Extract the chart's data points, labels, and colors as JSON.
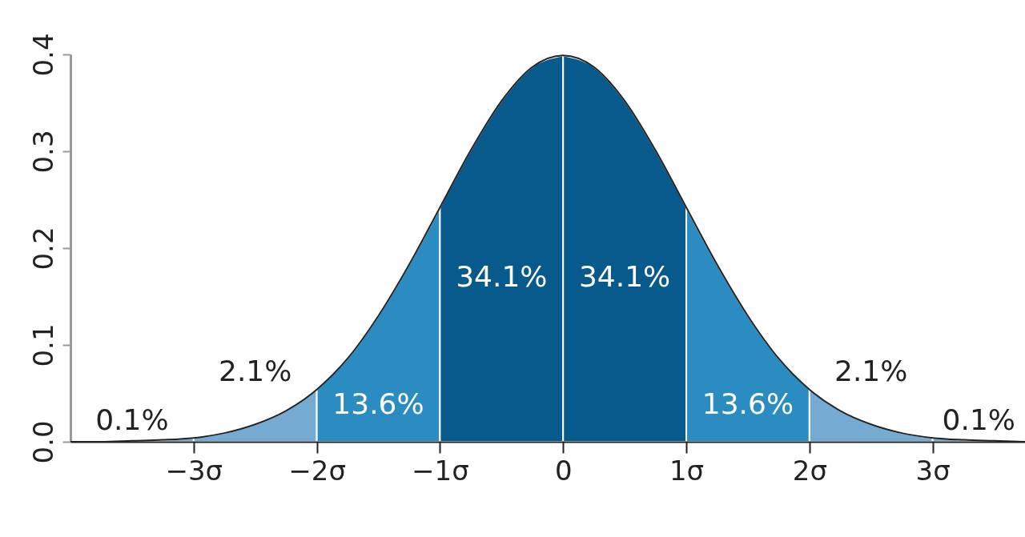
{
  "chart_data": {
    "type": "area",
    "xlim": [
      -4,
      3.75
    ],
    "ylim": [
      0,
      0.4
    ],
    "xticks": [
      {
        "value": -3,
        "label": "−3σ"
      },
      {
        "value": -2,
        "label": "−2σ"
      },
      {
        "value": -1,
        "label": "−1σ"
      },
      0,
      {
        "value": 1,
        "label": "1σ"
      },
      {
        "value": 2,
        "label": "2σ"
      },
      {
        "value": 3,
        "label": "3σ"
      }
    ],
    "yticks": [
      {
        "value": 0,
        "label": "0.0"
      },
      0.1,
      0.2,
      0.3,
      0.4
    ],
    "series": [
      {
        "color": "#75aad3",
        "x": [
          -4,
          -3.75,
          -3.5,
          -3.25,
          -3
        ],
        "values": [
          0.0,
          0.0,
          0.001,
          0.002,
          0.004
        ]
      },
      {
        "color": "#75aad3",
        "x": [
          -3,
          -2.75,
          -2.5,
          -2.25,
          -2
        ],
        "values": [
          0.004,
          0.009,
          0.018,
          0.032,
          0.054
        ]
      },
      {
        "color": "#2b8cc1",
        "x": [
          -2,
          -1.75,
          -1.5,
          -1.25,
          -1
        ],
        "values": [
          0.054,
          0.086,
          0.13,
          0.183,
          0.242
        ]
      },
      {
        "color": "#075a8b",
        "x": [
          -1,
          -0.75,
          -0.5,
          -0.25,
          0
        ],
        "values": [
          0.242,
          0.301,
          0.352,
          0.387,
          0.399
        ]
      },
      {
        "color": "#075a8b",
        "x": [
          0,
          0.25,
          0.5,
          0.75,
          1
        ],
        "values": [
          0.399,
          0.387,
          0.352,
          0.301,
          0.242
        ]
      },
      {
        "color": "#2b8cc1",
        "x": [
          1,
          1.25,
          1.5,
          1.75,
          2
        ],
        "values": [
          0.242,
          0.183,
          0.13,
          0.086,
          0.054
        ]
      },
      {
        "color": "#75aad3",
        "x": [
          2,
          2.25,
          2.5,
          2.75,
          3
        ],
        "values": [
          0.054,
          0.032,
          0.018,
          0.009,
          0.004
        ]
      },
      {
        "color": "#75aad3",
        "x": [
          3,
          3.25,
          3.5,
          3.75
        ],
        "values": [
          0.004,
          0.002,
          0.001,
          0.0
        ]
      },
      {
        "type": "line",
        "color": "#222222",
        "x": [
          -4,
          -3.75,
          -3.5,
          -3.25,
          -3,
          -2.75,
          -2.5,
          -2.25,
          -2,
          -1.75,
          -1.5,
          -1.25,
          -1,
          -0.75,
          -0.5,
          -0.25,
          0,
          0.25,
          0.5,
          0.75,
          1,
          1.25,
          1.5,
          1.75,
          2,
          2.25,
          2.5,
          2.75,
          3,
          3.25,
          3.5,
          3.75
        ],
        "values": [
          0.0,
          0.0,
          0.001,
          0.002,
          0.004,
          0.009,
          0.018,
          0.032,
          0.054,
          0.086,
          0.13,
          0.183,
          0.242,
          0.301,
          0.352,
          0.387,
          0.399,
          0.387,
          0.352,
          0.301,
          0.242,
          0.183,
          0.13,
          0.086,
          0.054,
          0.032,
          0.018,
          0.009,
          0.004,
          0.002,
          0.001,
          0.0
        ]
      }
    ],
    "annotations": [
      "0.1%",
      "2.1%",
      "13.6%",
      "34.1%",
      "34.1%",
      "13.6%",
      "2.1%",
      "0.1%"
    ]
  }
}
